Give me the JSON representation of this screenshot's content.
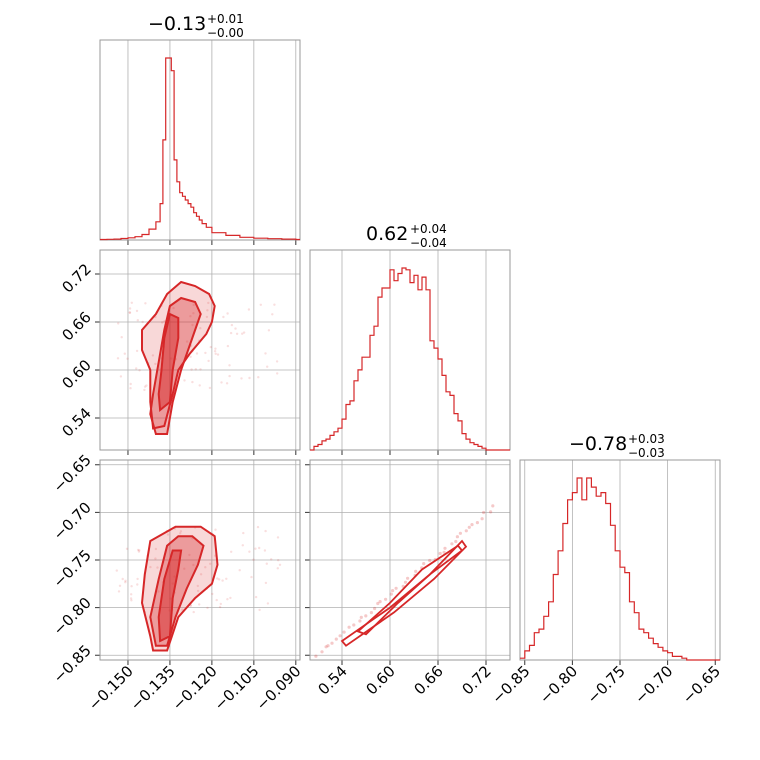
{
  "colors": {
    "accent": "#d62728",
    "grid": "#b0b0b0",
    "frame": "#9a9a9a"
  },
  "chart_data": {
    "type": "corner",
    "grid": true,
    "parameters": [
      {
        "summary": {
          "median": "−0.13",
          "upper": "+0.01",
          "lower": "−0.00"
        },
        "range": [
          -0.16,
          -0.0885
        ],
        "ticks": [
          -0.15,
          -0.135,
          -0.12,
          -0.105,
          -0.09
        ],
        "tick_labels": [
          "−0.150",
          "−0.135",
          "−0.120",
          "−0.105",
          "−0.090"
        ]
      },
      {
        "summary": {
          "median": "0.62",
          "upper": "+0.04",
          "lower": "−0.04"
        },
        "range": [
          0.5,
          0.75
        ],
        "ticks": [
          0.54,
          0.6,
          0.66,
          0.72
        ],
        "tick_labels": [
          "0.54",
          "0.60",
          "0.66",
          "0.72"
        ]
      },
      {
        "summary": {
          "median": "−0.78",
          "upper": "+0.03",
          "lower": "−0.03"
        },
        "range": [
          -0.855,
          -0.645
        ],
        "ticks": [
          -0.85,
          -0.8,
          -0.75,
          -0.7,
          -0.65
        ],
        "tick_labels": [
          "−0.85",
          "−0.80",
          "−0.75",
          "−0.70",
          "−0.65"
        ]
      }
    ],
    "histograms": [
      {
        "param": 0,
        "edges": [
          -0.16,
          -0.1575,
          -0.155,
          -0.1525,
          -0.15,
          -0.1475,
          -0.145,
          -0.1425,
          -0.14,
          -0.1385,
          -0.1375,
          -0.1365,
          -0.1355,
          -0.1345,
          -0.1335,
          -0.1325,
          -0.1315,
          -0.1305,
          -0.1295,
          -0.1285,
          -0.1275,
          -0.1265,
          -0.1255,
          -0.1245,
          -0.1235,
          -0.122,
          -0.12,
          -0.115,
          -0.11,
          -0.105,
          -0.1,
          -0.095,
          -0.09,
          -0.0885
        ],
        "counts": [
          0.3,
          0.4,
          0.5,
          0.8,
          1.2,
          1.8,
          3,
          6,
          10,
          20,
          55,
          100,
          100,
          93,
          44,
          32,
          26,
          24,
          22,
          20,
          18,
          15,
          13,
          11,
          9,
          7,
          4,
          2.5,
          1.5,
          1,
          0.7,
          0.5,
          0.3
        ]
      },
      {
        "param": 1,
        "edges": [
          0.5,
          0.505,
          0.51,
          0.515,
          0.52,
          0.525,
          0.53,
          0.535,
          0.54,
          0.545,
          0.55,
          0.555,
          0.56,
          0.565,
          0.57,
          0.575,
          0.58,
          0.585,
          0.59,
          0.595,
          0.6,
          0.605,
          0.61,
          0.615,
          0.62,
          0.625,
          0.63,
          0.635,
          0.64,
          0.645,
          0.65,
          0.655,
          0.66,
          0.665,
          0.67,
          0.675,
          0.68,
          0.685,
          0.69,
          0.695,
          0.7,
          0.705,
          0.71,
          0.715,
          0.72,
          0.75
        ],
        "counts": [
          0,
          2,
          3,
          5,
          6,
          8,
          10,
          12,
          17,
          25,
          27,
          38,
          44,
          51,
          51,
          63,
          68,
          84,
          89,
          89,
          99,
          93,
          97,
          100,
          99,
          92,
          96,
          88,
          95,
          88,
          60,
          56,
          50,
          41,
          32,
          30,
          20,
          16,
          9,
          6,
          4,
          3,
          2,
          1,
          0
        ]
      },
      {
        "param": 2,
        "edges": [
          -0.855,
          -0.85,
          -0.845,
          -0.84,
          -0.835,
          -0.83,
          -0.825,
          -0.82,
          -0.815,
          -0.81,
          -0.805,
          -0.8,
          -0.795,
          -0.79,
          -0.785,
          -0.78,
          -0.775,
          -0.77,
          -0.765,
          -0.76,
          -0.755,
          -0.75,
          -0.745,
          -0.74,
          -0.735,
          -0.73,
          -0.725,
          -0.72,
          -0.715,
          -0.71,
          -0.705,
          -0.7,
          -0.695,
          -0.69,
          -0.685,
          -0.68,
          -0.645
        ],
        "counts": [
          1,
          5,
          8,
          15,
          17,
          24,
          32,
          47,
          60,
          75,
          88,
          92,
          100,
          88,
          100,
          95,
          90,
          92,
          86,
          74,
          60,
          51,
          48,
          32,
          26,
          17,
          15,
          12,
          9,
          7,
          5,
          4,
          2,
          2,
          1,
          0
        ]
      }
    ],
    "scatter": [
      {
        "x_param": 0,
        "y_param": 1,
        "contours": [
          [
            [
              -0.1385,
              0.55
            ],
            [
              -0.135,
              0.56
            ],
            [
              -0.134,
              0.6
            ],
            [
              -0.132,
              0.64
            ],
            [
              -0.132,
              0.665
            ],
            [
              -0.135,
              0.67
            ],
            [
              -0.137,
              0.64
            ],
            [
              -0.138,
              0.6
            ],
            [
              -0.139,
              0.57
            ]
          ],
          [
            [
              -0.14,
              0.52
            ],
            [
              -0.136,
              0.52
            ],
            [
              -0.134,
              0.56
            ],
            [
              -0.131,
              0.6
            ],
            [
              -0.127,
              0.64
            ],
            [
              -0.124,
              0.67
            ],
            [
              -0.126,
              0.685
            ],
            [
              -0.131,
              0.69
            ],
            [
              -0.135,
              0.68
            ],
            [
              -0.137,
              0.65
            ],
            [
              -0.139,
              0.61
            ],
            [
              -0.141,
              0.57
            ],
            [
              -0.142,
              0.545
            ]
          ],
          [
            [
              -0.141,
              0.527
            ],
            [
              -0.137,
              0.53
            ],
            [
              -0.134,
              0.57
            ],
            [
              -0.132,
              0.6
            ],
            [
              -0.128,
              0.62
            ],
            [
              -0.122,
              0.645
            ],
            [
              -0.12,
              0.66
            ],
            [
              -0.119,
              0.68
            ],
            [
              -0.121,
              0.695
            ],
            [
              -0.126,
              0.705
            ],
            [
              -0.131,
              0.71
            ],
            [
              -0.136,
              0.695
            ],
            [
              -0.14,
              0.67
            ],
            [
              -0.145,
              0.65
            ],
            [
              -0.145,
              0.625
            ],
            [
              -0.142,
              0.6
            ],
            [
              -0.142,
              0.56
            ]
          ]
        ]
      },
      {
        "x_param": 0,
        "y_param": 2,
        "contours": [
          [
            [
              -0.1385,
              -0.835
            ],
            [
              -0.135,
              -0.83
            ],
            [
              -0.134,
              -0.79
            ],
            [
              -0.132,
              -0.76
            ],
            [
              -0.131,
              -0.74
            ],
            [
              -0.134,
              -0.74
            ],
            [
              -0.137,
              -0.77
            ],
            [
              -0.139,
              -0.81
            ]
          ],
          [
            [
              -0.14,
              -0.84
            ],
            [
              -0.136,
              -0.84
            ],
            [
              -0.133,
              -0.81
            ],
            [
              -0.129,
              -0.78
            ],
            [
              -0.125,
              -0.755
            ],
            [
              -0.123,
              -0.735
            ],
            [
              -0.127,
              -0.725
            ],
            [
              -0.132,
              -0.725
            ],
            [
              -0.136,
              -0.735
            ],
            [
              -0.139,
              -0.77
            ],
            [
              -0.142,
              -0.81
            ]
          ],
          [
            [
              -0.141,
              -0.845
            ],
            [
              -0.136,
              -0.845
            ],
            [
              -0.132,
              -0.81
            ],
            [
              -0.126,
              -0.79
            ],
            [
              -0.12,
              -0.775
            ],
            [
              -0.118,
              -0.755
            ],
            [
              -0.119,
              -0.725
            ],
            [
              -0.124,
              -0.715
            ],
            [
              -0.133,
              -0.715
            ],
            [
              -0.142,
              -0.73
            ],
            [
              -0.144,
              -0.765
            ],
            [
              -0.145,
              -0.795
            ],
            [
              -0.142,
              -0.83
            ]
          ]
        ]
      },
      {
        "x_param": 1,
        "y_param": 2,
        "contours": [
          [
            [
              0.56,
              -0.825
            ],
            [
              0.6,
              -0.795
            ],
            [
              0.64,
              -0.76
            ],
            [
              0.685,
              -0.735
            ],
            [
              0.69,
              -0.74
            ],
            [
              0.65,
              -0.765
            ],
            [
              0.61,
              -0.795
            ],
            [
              0.57,
              -0.828
            ]
          ],
          [
            [
              0.54,
              -0.835
            ],
            [
              0.6,
              -0.8
            ],
            [
              0.65,
              -0.765
            ],
            [
              0.69,
              -0.73
            ],
            [
              0.695,
              -0.736
            ],
            [
              0.655,
              -0.77
            ],
            [
              0.605,
              -0.805
            ],
            [
              0.545,
              -0.84
            ]
          ]
        ],
        "trail": {
          "from": [
            0.51,
            -0.85
          ],
          "to": [
            0.73,
            -0.695
          ],
          "n": 45
        }
      }
    ]
  }
}
